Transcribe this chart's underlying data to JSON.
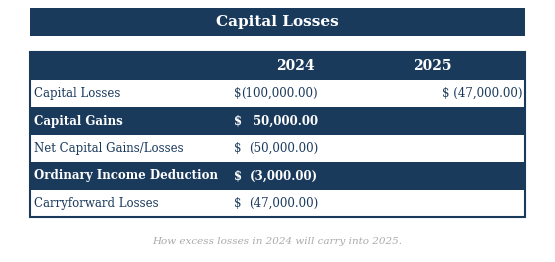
{
  "title": "Capital Losses",
  "title_bg": "#1a3a5c",
  "title_color": "#ffffff",
  "header_bg": "#1a3a5c",
  "header_color": "#ffffff",
  "row_bg_dark": "#1a3a5c",
  "row_bg_light": "#ffffff",
  "row_text_dark": "#ffffff",
  "row_text_light": "#1a3a5c",
  "border_color": "#1a3a5c",
  "footnote": "How excess losses in 2024 will carry into 2025.",
  "footnote_color": "#aaaaaa",
  "rows": [
    {
      "label": "Capital Losses",
      "dollar": "$",
      "val2024": "(100,000.00)",
      "val2025": "$ (47,000.00)",
      "dark": false
    },
    {
      "label": "Capital Gains",
      "dollar": "$",
      "val2024": "50,000.00",
      "val2025": "",
      "dark": true
    },
    {
      "label": "Net Capital Gains/Losses",
      "dollar": "$",
      "val2024": "(50,000.00)",
      "val2025": "",
      "dark": false
    },
    {
      "label": "Ordinary Income Deduction",
      "dollar": "$",
      "val2024": "(3,000.00)",
      "val2025": "",
      "dark": true
    },
    {
      "label": "Carryforward Losses",
      "dollar": "$",
      "val2024": "(47,000.00)",
      "val2025": "",
      "dark": false
    }
  ]
}
